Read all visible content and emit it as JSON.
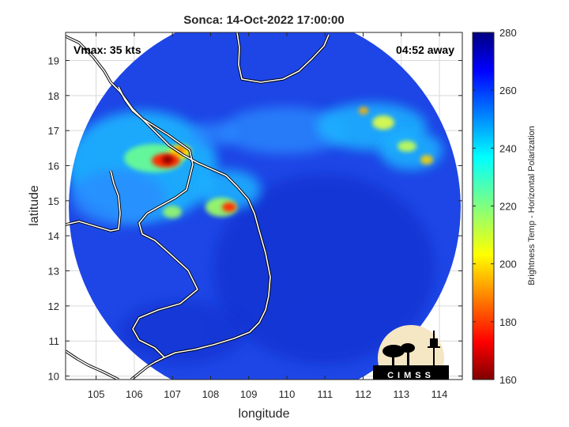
{
  "chart_data": {
    "type": "heatmap",
    "title": "Sonca: 14-Oct-2022 17:00:00",
    "xlabel": "longitude",
    "ylabel": "latitude",
    "xlim": [
      104.2,
      114.6
    ],
    "ylim": [
      9.9,
      19.8
    ],
    "xticks": [
      105,
      106,
      107,
      108,
      109,
      110,
      111,
      112,
      113,
      114
    ],
    "yticks": [
      10,
      11,
      12,
      13,
      14,
      15,
      16,
      17,
      18,
      19
    ],
    "annotations": {
      "vmax": "Vmax: 35 kts",
      "away": "04:52 away"
    },
    "colorbar": {
      "label": "Brightness Temp - Horizontal Polarization",
      "range": [
        160,
        280
      ],
      "ticks": [
        160,
        180,
        200,
        220,
        240,
        260,
        280
      ],
      "colormap": "jet"
    },
    "swath": {
      "center": [
        109.3,
        14.9
      ],
      "radius_deg": 5.0,
      "background_value": 262
    },
    "features": [
      {
        "name": "convective core",
        "lon": 106.75,
        "lat": 16.2,
        "tb": 168
      },
      {
        "name": "convective core",
        "lon": 108.45,
        "lat": 14.9,
        "tb": 190
      },
      {
        "name": "convective cell",
        "lon": 106.9,
        "lat": 16.5,
        "tb": 195
      },
      {
        "name": "convective cell",
        "lon": 107.9,
        "lat": 14.8,
        "tb": 215
      },
      {
        "name": "cloud band",
        "lon": 112.3,
        "lat": 17.3,
        "tb": 225
      },
      {
        "name": "cloud band",
        "lon": 113.6,
        "lat": 16.3,
        "tb": 222
      }
    ],
    "grid": true,
    "logo": "CIMSS"
  }
}
